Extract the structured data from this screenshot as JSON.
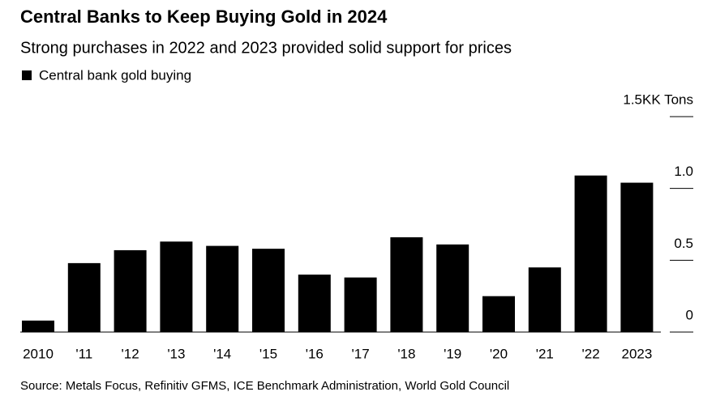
{
  "chart_data": {
    "type": "bar",
    "title": "Central Banks to Keep Buying Gold in 2024",
    "subtitle": "Strong purchases in 2022 and 2023 provided solid support for prices",
    "legend": "Central bank gold buying",
    "source": "Source: Metals Focus, Refinitiv GFMS, ICE Benchmark Administration, World Gold Council",
    "categories": [
      "2010",
      "'11",
      "'12",
      "'13",
      "'14",
      "'15",
      "'16",
      "'17",
      "'18",
      "'19",
      "'20",
      "'21",
      "'22",
      "2023"
    ],
    "values": [
      0.08,
      0.48,
      0.57,
      0.63,
      0.6,
      0.58,
      0.4,
      0.38,
      0.66,
      0.61,
      0.25,
      0.45,
      1.09,
      1.04
    ],
    "color": "#000000",
    "ylim": [
      0,
      1.5
    ],
    "yticks": [
      0,
      0.5,
      {
        "value": 1,
        "label": "1.0"
      },
      {
        "value": 1.5,
        "label": "1.5KK Tons"
      }
    ]
  }
}
